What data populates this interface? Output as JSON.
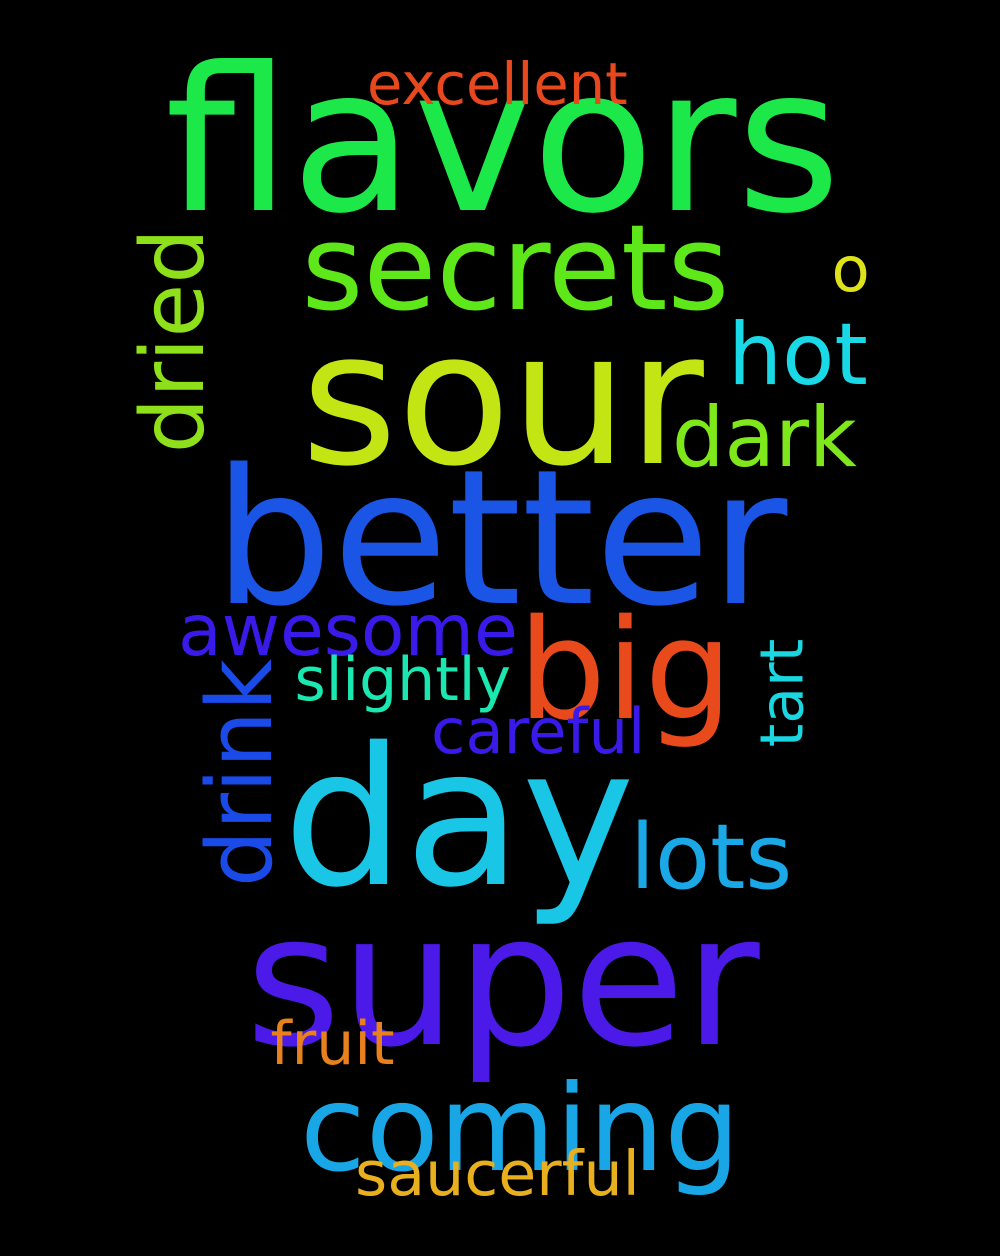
{
  "background": "#000000",
  "words": [
    {
      "id": "flavors",
      "text": "flavors",
      "color": "#1de84a"
    },
    {
      "id": "sour",
      "text": "sour",
      "color": "#c4e514"
    },
    {
      "id": "better",
      "text": "better",
      "color": "#1a55e6"
    },
    {
      "id": "day",
      "text": "day",
      "color": "#19c6e6"
    },
    {
      "id": "super",
      "text": "super",
      "color": "#4b1ae8"
    },
    {
      "id": "secrets",
      "text": "secrets",
      "color": "#5ee81a"
    },
    {
      "id": "big",
      "text": "big",
      "color": "#e84a1c"
    },
    {
      "id": "coming",
      "text": "coming",
      "color": "#18a6e6"
    },
    {
      "id": "excellent",
      "text": "excellent",
      "color": "#e8481e"
    },
    {
      "id": "o",
      "text": "o",
      "color": "#dde21a"
    },
    {
      "id": "hot",
      "text": "hot",
      "color": "#1ad9e6"
    },
    {
      "id": "dark",
      "text": "dark",
      "color": "#7ee81a"
    },
    {
      "id": "dried",
      "text": "dried",
      "color": "#8ee01a"
    },
    {
      "id": "awesome",
      "text": "awesome",
      "color": "#3a1ae8"
    },
    {
      "id": "slightly",
      "text": "slightly",
      "color": "#1ae8b0"
    },
    {
      "id": "drink",
      "text": "drink",
      "color": "#1a4ae8"
    },
    {
      "id": "tart",
      "text": "tart",
      "color": "#1ad6e0"
    },
    {
      "id": "careful",
      "text": "careful",
      "color": "#3a1ae8"
    },
    {
      "id": "lots",
      "text": "lots",
      "color": "#1aa8e6"
    },
    {
      "id": "fruit",
      "text": "fruit",
      "color": "#e8801e"
    },
    {
      "id": "saucerful",
      "text": "saucerful",
      "color": "#e8b01e"
    }
  ]
}
